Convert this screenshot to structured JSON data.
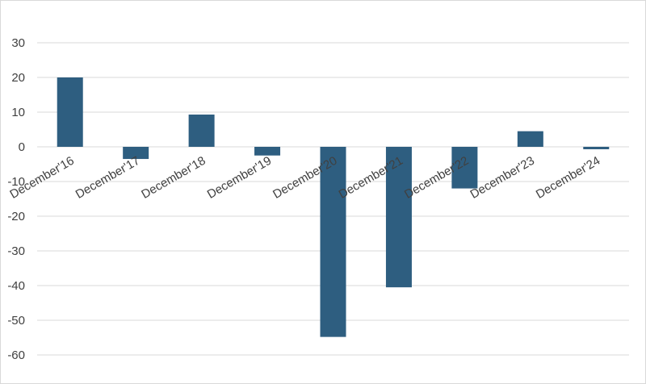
{
  "chart_data": {
    "type": "bar",
    "title": "",
    "xlabel": "",
    "ylabel": "",
    "categories": [
      "December'16",
      "December'17",
      "December'18",
      "December'19",
      "December'20",
      "December'21",
      "December'22",
      "December'23",
      "December'24"
    ],
    "values": [
      20,
      -3.5,
      9.3,
      -2.5,
      -54.8,
      -40.5,
      -12,
      4.5,
      -0.7
    ],
    "ylim": [
      -60,
      30
    ],
    "yticks": [
      30,
      20,
      10,
      0,
      -10,
      -20,
      -30,
      -40,
      -50,
      -60
    ],
    "grid": true,
    "legend": "none",
    "bar_color": "#2e5e80",
    "grid_color": "#d9d9d9",
    "text_color": "#404040"
  }
}
